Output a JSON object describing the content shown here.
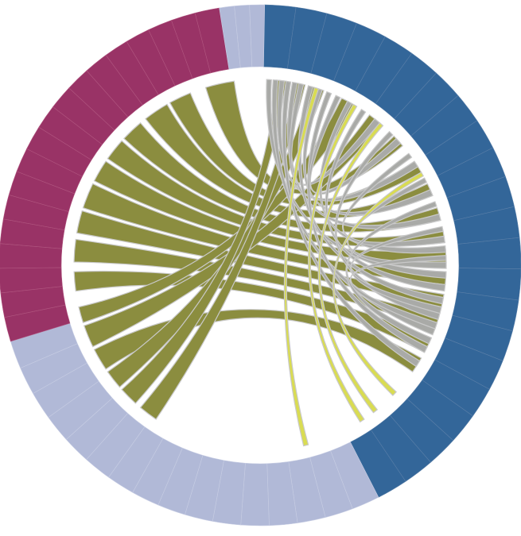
{
  "chart_data": {
    "type": "chord",
    "title": "",
    "groups": [
      {
        "id": "blue",
        "color": "#336699",
        "start_deg": 1,
        "end_deg": 153,
        "segments": 22
      },
      {
        "id": "lavender",
        "color": "#b1b9d7",
        "start_deg": 153,
        "end_deg": 253,
        "segments": 16
      },
      {
        "id": "magenta",
        "color": "#993366",
        "start_deg": 253,
        "end_deg": 351,
        "segments": 18
      },
      {
        "id": "lavender-small",
        "color": "#b1b9d7",
        "start_deg": 351,
        "end_deg": 361,
        "segments": 3
      }
    ],
    "ribbon_colors": {
      "olive": "#8b8d3f",
      "gray": "#a9aaa7",
      "yellow": "#d9dc52",
      "ribbon_stroke": "#c9c9c9"
    },
    "ribbons": [
      {
        "color": "olive",
        "from": [
          343,
          352
        ],
        "to": [
          46,
          50
        ]
      },
      {
        "color": "olive",
        "from": [
          331,
          338
        ],
        "to": [
          56,
          60
        ]
      },
      {
        "color": "olive",
        "from": [
          322,
          330
        ],
        "to": [
          64,
          68
        ]
      },
      {
        "color": "olive",
        "from": [
          313,
          320
        ],
        "to": [
          72,
          76
        ]
      },
      {
        "color": "olive",
        "from": [
          305,
          312
        ],
        "to": [
          79,
          83
        ]
      },
      {
        "color": "olive",
        "from": [
          297,
          304
        ],
        "to": [
          85,
          89
        ]
      },
      {
        "color": "olive",
        "from": [
          288,
          296
        ],
        "to": [
          92,
          96
        ]
      },
      {
        "color": "olive",
        "from": [
          280,
          287
        ],
        "to": [
          99,
          103
        ]
      },
      {
        "color": "olive",
        "from": [
          271,
          278
        ],
        "to": [
          106,
          110
        ]
      },
      {
        "color": "olive",
        "from": [
          262,
          268
        ],
        "to": [
          113,
          118
        ]
      },
      {
        "color": "olive",
        "from": [
          252,
          257
        ],
        "to": [
          26,
          31
        ]
      },
      {
        "color": "olive",
        "from": [
          244,
          251
        ],
        "to": [
          36,
          41
        ]
      },
      {
        "color": "olive",
        "from": [
          236,
          243
        ],
        "to": [
          120,
          125
        ]
      },
      {
        "color": "olive",
        "from": [
          229,
          235
        ],
        "to": [
          16,
          20
        ]
      },
      {
        "color": "olive",
        "from": [
          222,
          228
        ],
        "to": [
          5,
          8
        ]
      },
      {
        "color": "olive",
        "from": [
          214,
          220
        ],
        "to": [
          11,
          14
        ]
      },
      {
        "color": "gray",
        "from": [
          2,
          3.5
        ],
        "to": [
          92,
          94
        ]
      },
      {
        "color": "gray",
        "from": [
          4,
          5.5
        ],
        "to": [
          110,
          112
        ]
      },
      {
        "color": "gray",
        "from": [
          6,
          7.5
        ],
        "to": [
          56,
          58
        ]
      },
      {
        "color": "gray",
        "from": [
          8,
          9.5
        ],
        "to": [
          121,
          123
        ]
      },
      {
        "color": "gray",
        "from": [
          10,
          11.5
        ],
        "to": [
          74,
          76
        ]
      },
      {
        "color": "gray",
        "from": [
          12,
          13.5
        ],
        "to": [
          38,
          40
        ]
      },
      {
        "color": "gray",
        "from": [
          15,
          16.5
        ],
        "to": [
          100,
          102
        ]
      },
      {
        "color": "gray",
        "from": [
          18,
          19.5
        ],
        "to": [
          66,
          68
        ]
      },
      {
        "color": "gray",
        "from": [
          21,
          22.5
        ],
        "to": [
          116,
          118
        ]
      },
      {
        "color": "gray",
        "from": [
          24,
          25.5
        ],
        "to": [
          47,
          49
        ]
      },
      {
        "color": "gray",
        "from": [
          28,
          29.5
        ],
        "to": [
          84,
          86
        ]
      },
      {
        "color": "gray",
        "from": [
          33,
          34.5
        ],
        "to": [
          96,
          98
        ]
      },
      {
        "color": "gray",
        "from": [
          44,
          45.5
        ],
        "to": [
          105,
          107
        ]
      },
      {
        "color": "gray",
        "from": [
          53,
          54.5
        ],
        "to": [
          81,
          83
        ]
      },
      {
        "color": "gray",
        "from": [
          62,
          63.5
        ],
        "to": [
          89,
          91
        ]
      },
      {
        "color": "gray",
        "from": [
          70,
          71.5
        ],
        "to": [
          113,
          115
        ]
      },
      {
        "color": "gray",
        "from": [
          78,
          79.5
        ],
        "to": [
          103,
          105
        ]
      },
      {
        "color": "gray",
        "from": [
          87,
          88.5
        ],
        "to": [
          108,
          110
        ]
      },
      {
        "color": "yellow",
        "from": [
          17,
          18.3
        ],
        "to": [
          165,
          166.5
        ]
      },
      {
        "color": "yellow",
        "from": [
          30,
          31.3
        ],
        "to": [
          146,
          147.5
        ]
      },
      {
        "color": "yellow",
        "from": [
          40,
          41.3
        ],
        "to": [
          141,
          142.5
        ]
      },
      {
        "color": "yellow",
        "from": [
          60,
          61.3
        ],
        "to": [
          133,
          134.5
        ]
      }
    ]
  }
}
